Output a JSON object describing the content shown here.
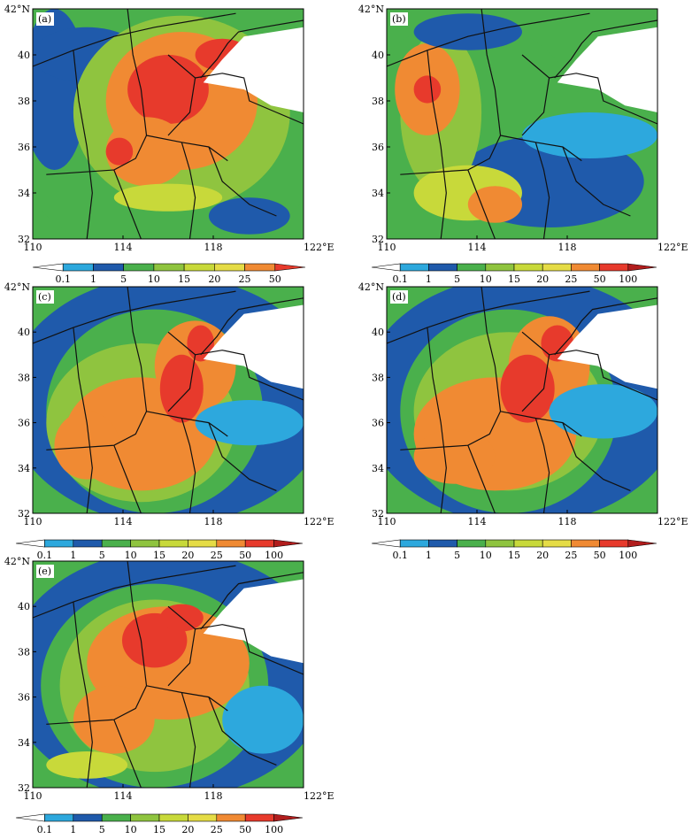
{
  "colors": {
    "band0": "#ffffff",
    "band1": "#2da8dd",
    "band2": "#1f5aab",
    "band3": "#4ab04c",
    "band4": "#8fc43f",
    "band5": "#c8d93a",
    "band6": "#e5dc46",
    "band7": "#f08a33",
    "band8": "#e73a2c",
    "band9": "#b11d1d",
    "sea": "#ffffff",
    "border": "#111111"
  },
  "axes": {
    "lon_ticks": [
      "110",
      "114",
      "118",
      "122°E"
    ],
    "lat_ticks": [
      "32",
      "34",
      "36",
      "38",
      "40",
      "42°N"
    ],
    "lon_range": [
      110,
      122
    ],
    "lat_range": [
      32,
      42
    ]
  },
  "panels": [
    {
      "id": "a",
      "label": "(a)",
      "colorbar": [
        "0.1",
        "1",
        "5",
        "10",
        "15",
        "20",
        "25",
        "50"
      ]
    },
    {
      "id": "b",
      "label": "(b)",
      "colorbar": [
        "0.1",
        "1",
        "5",
        "10",
        "15",
        "20",
        "25",
        "50",
        "100"
      ]
    },
    {
      "id": "c",
      "label": "(c)",
      "colorbar": [
        "0.1",
        "1",
        "5",
        "10",
        "15",
        "20",
        "25",
        "50",
        "100"
      ]
    },
    {
      "id": "d",
      "label": "(d)",
      "colorbar": [
        "0.1",
        "1",
        "5",
        "10",
        "15",
        "20",
        "25",
        "50",
        "100"
      ]
    },
    {
      "id": "e",
      "label": "(e)",
      "colorbar": [
        "0.1",
        "1",
        "5",
        "10",
        "15",
        "20",
        "25",
        "50",
        "100"
      ]
    }
  ]
}
